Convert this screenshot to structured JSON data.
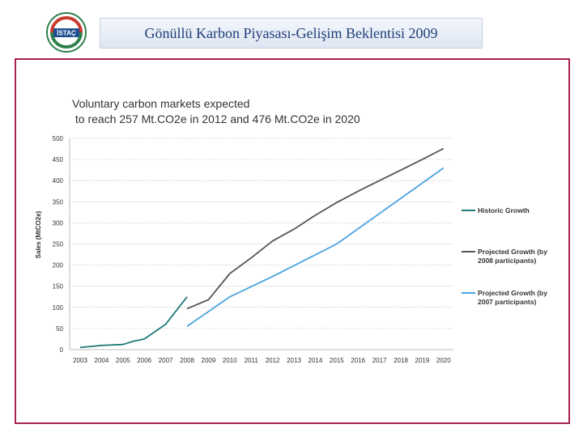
{
  "header": {
    "title": "Gönüllü Karbon Piyasası-Gelişim Beklentisi 2009",
    "logo_text": "İSTAÇ"
  },
  "colors": {
    "frame": "#a6234a",
    "historic": "#1f7a78",
    "projected_2008": "#555555",
    "projected_2007": "#4aa3df"
  },
  "chart_data": {
    "type": "line",
    "title": "Voluntary carbon markets expected\n to reach 257 Mt.CO2e in 2012 and 476 Mt.CO2e in 2020",
    "title_lines": [
      "Voluntary carbon markets expected",
      " to reach 257 Mt.CO2e in 2012 and 476 Mt.CO2e in 2020"
    ],
    "xlabel": "",
    "ylabel": "Sales (MtCO2e)",
    "ylim": [
      0,
      500
    ],
    "yticks": [
      0,
      50,
      100,
      150,
      200,
      250,
      300,
      350,
      400,
      450,
      500
    ],
    "xticks": [
      "2003",
      "2004",
      "2005",
      "2006",
      "2007",
      "2008",
      "2009",
      "2010",
      "2011",
      "2012",
      "2013",
      "2014",
      "2015",
      "2016",
      "2017",
      "2018",
      "2019",
      "2020"
    ],
    "grid": true,
    "legend_position": "right",
    "series": [
      {
        "name": "Historic Growth",
        "x": [
          2003,
          2004,
          2005,
          2005.5,
          2006,
          2007,
          2008
        ],
        "values": [
          5,
          10,
          12,
          20,
          25,
          60,
          125
        ]
      },
      {
        "name": "Projected Growth (by 2008 participants)",
        "x": [
          2008,
          2009,
          2010,
          2011,
          2012,
          2013,
          2014,
          2015,
          2016,
          2017,
          2018,
          2019,
          2020
        ],
        "values": [
          97,
          118,
          180,
          217,
          257,
          285,
          318,
          348,
          375,
          400,
          425,
          450,
          476
        ]
      },
      {
        "name": "Projected Growth (by 2007 participants)",
        "x": [
          2008,
          2010,
          2012,
          2015,
          2020
        ],
        "values": [
          55,
          125,
          173,
          250,
          430
        ]
      }
    ]
  }
}
